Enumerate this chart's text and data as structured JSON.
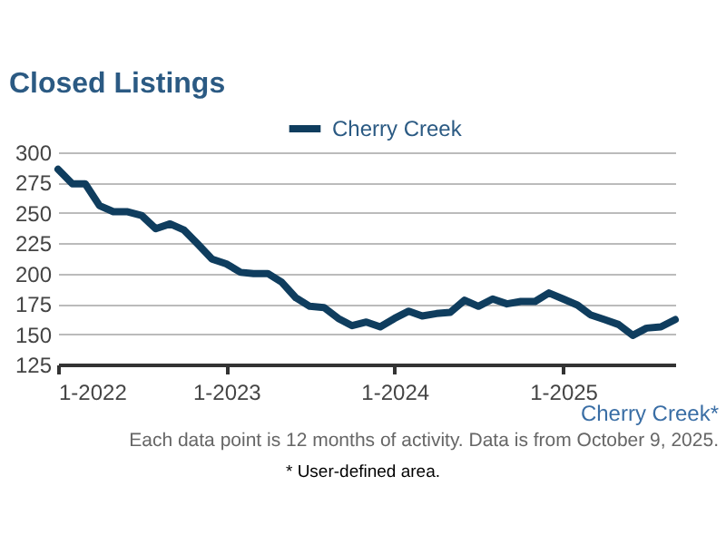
{
  "chart_data": {
    "type": "line",
    "title": "Closed Listings",
    "x": [
      "2022-01",
      "2022-02",
      "2022-03",
      "2022-04",
      "2022-05",
      "2022-06",
      "2022-07",
      "2022-08",
      "2022-09",
      "2022-10",
      "2022-11",
      "2022-12",
      "2023-01",
      "2023-02",
      "2023-03",
      "2023-04",
      "2023-05",
      "2023-06",
      "2023-07",
      "2023-08",
      "2023-09",
      "2023-10",
      "2023-11",
      "2023-12",
      "2024-01",
      "2024-02",
      "2024-03",
      "2024-04",
      "2024-05",
      "2024-06",
      "2024-07",
      "2024-08",
      "2024-09",
      "2024-10",
      "2024-11",
      "2024-12",
      "2025-01",
      "2025-02",
      "2025-03",
      "2025-04",
      "2025-05",
      "2025-06",
      "2025-07",
      "2025-08",
      "2025-09"
    ],
    "series": [
      {
        "name": "Cherry Creek",
        "color": "#0f3d5e",
        "values": [
          286,
          274,
          274,
          256,
          251,
          251,
          248,
          237,
          241,
          236,
          224,
          212,
          208,
          201,
          200,
          200,
          193,
          180,
          173,
          172,
          163,
          157,
          160,
          156,
          163,
          169,
          165,
          167,
          168,
          178,
          173,
          179,
          175,
          177,
          177,
          184,
          179,
          174,
          166,
          162,
          158,
          149,
          155,
          156,
          162
        ]
      }
    ],
    "xlim": [
      "2022-01",
      "2025-09"
    ],
    "xticks": [
      {
        "value": "2022-01",
        "label": "1-2022"
      },
      {
        "value": "2023-01",
        "label": "1-2023"
      },
      {
        "value": "2024-01",
        "label": "1-2024"
      },
      {
        "value": "2025-01",
        "label": "1-2025"
      }
    ],
    "ylim": [
      125,
      300
    ],
    "yticks": [
      125,
      150,
      175,
      200,
      225,
      250,
      275,
      300
    ],
    "grid": "y",
    "legend": "top",
    "marker": "none",
    "line_style": "solid",
    "annotations": [
      "Cherry Creek*",
      "Each data point is 12 months of activity. Data is from October 9, 2025.",
      "* User-defined area."
    ]
  }
}
